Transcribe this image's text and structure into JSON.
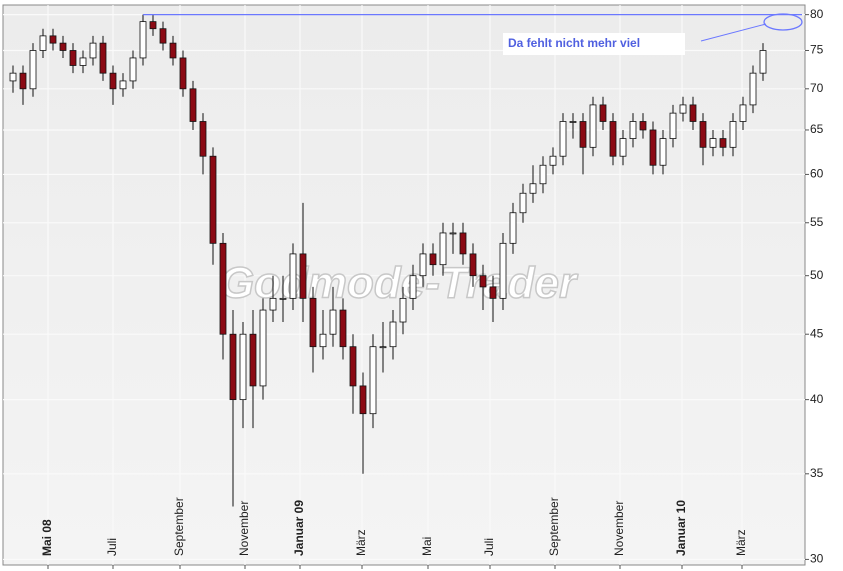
{
  "chart_data": {
    "type": "candlestick",
    "watermark": "Godmode-Trader",
    "annotation": "Da fehlt nicht mehr viel",
    "resistance_level": 80,
    "log_scale": true,
    "grid": true,
    "up_color": "#ffffff",
    "down_color": "#8b0a14",
    "resistance_color": "#6b78ff",
    "ylim": [
      29.7,
      81.4
    ],
    "yticks": [
      30,
      35,
      40,
      45,
      50,
      55,
      60,
      65,
      70,
      75,
      80
    ],
    "xlim": [
      -1,
      79.2
    ],
    "xticks": [
      {
        "value": 3.5,
        "label": "Mai 08"
      },
      {
        "value": 10,
        "label": "Juli"
      },
      {
        "value": 16.7,
        "label": "September"
      },
      {
        "value": 23.2,
        "label": "November"
      },
      {
        "value": 28.7,
        "label": "Januar 09"
      },
      {
        "value": 34.9,
        "label": "März"
      },
      {
        "value": 41.5,
        "label": "Mai"
      },
      {
        "value": 47.7,
        "label": "Juli"
      },
      {
        "value": 54.2,
        "label": "September"
      },
      {
        "value": 60.7,
        "label": "November"
      },
      {
        "value": 66.9,
        "label": "Januar 10"
      },
      {
        "value": 72.9,
        "label": "März"
      }
    ],
    "bold_xticks": [
      0,
      4,
      10
    ],
    "open": [
      71,
      72,
      70,
      75,
      77,
      76,
      75,
      73,
      74,
      76,
      72,
      70,
      71,
      74,
      79,
      78,
      76,
      74,
      70,
      66,
      62,
      53,
      45,
      40,
      45,
      41,
      47,
      48,
      48,
      52,
      48,
      44,
      45,
      47,
      44,
      41,
      39,
      44,
      44,
      46,
      48,
      50,
      52,
      51,
      54,
      54,
      52,
      50,
      49,
      48,
      53,
      56,
      58,
      59,
      61,
      62,
      66,
      66,
      63,
      68,
      66,
      62,
      64,
      66,
      65,
      61,
      64,
      67,
      68,
      66,
      63,
      64,
      63,
      66,
      68,
      72
    ],
    "high": [
      73,
      73,
      76,
      78,
      78,
      77,
      76,
      75,
      77,
      77,
      73,
      72,
      75,
      80,
      80,
      79,
      77,
      75,
      71,
      67,
      63,
      54,
      47,
      46,
      47,
      48,
      50,
      50,
      53,
      57,
      49,
      47,
      49,
      48,
      45,
      42,
      45,
      46,
      47,
      49,
      51,
      53,
      53,
      55,
      55,
      55,
      53,
      51,
      50,
      54,
      57,
      59,
      61,
      62,
      63,
      67,
      67,
      67,
      69,
      69,
      67,
      65,
      67,
      67,
      66,
      65,
      68,
      69,
      69,
      67,
      65,
      65,
      67,
      69,
      73,
      76
    ],
    "low": [
      69.5,
      68,
      69,
      74,
      75,
      74,
      72,
      72,
      73,
      71,
      68,
      69,
      70,
      73,
      77,
      75,
      73,
      69,
      65,
      60,
      51,
      43,
      33,
      38,
      38,
      40,
      46,
      46,
      47,
      46,
      42,
      43,
      44,
      43,
      39,
      35,
      38,
      42,
      43,
      45,
      47,
      49,
      50,
      50,
      52,
      51,
      49,
      47,
      46,
      47,
      52,
      55,
      57,
      58,
      60,
      61,
      64,
      60,
      62,
      65,
      61,
      61,
      63,
      64,
      60,
      60,
      63,
      66,
      65,
      61,
      62,
      62,
      62,
      65,
      67,
      71
    ],
    "close": [
      72,
      70,
      75,
      77,
      76,
      75,
      73,
      74,
      76,
      72,
      70,
      71,
      74,
      79,
      78,
      76,
      74,
      70,
      66,
      62,
      53,
      45,
      40,
      45,
      41,
      47,
      48,
      48,
      52,
      48,
      44,
      45,
      47,
      44,
      41,
      39,
      44,
      44,
      46,
      48,
      50,
      52,
      51,
      54,
      54,
      52,
      50,
      49,
      48,
      53,
      56,
      58,
      59,
      61,
      62,
      66,
      66,
      63,
      68,
      66,
      62,
      64,
      66,
      65,
      61,
      64,
      67,
      68,
      66,
      63,
      64,
      63,
      66,
      68,
      72,
      75
    ]
  }
}
